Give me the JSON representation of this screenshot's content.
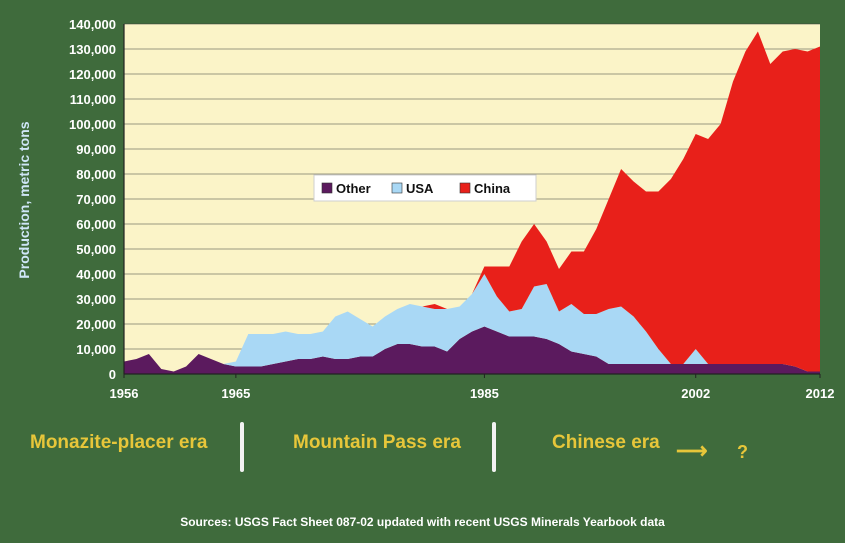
{
  "chart_data": {
    "type": "area",
    "stacked": true,
    "ylabel": "Production, metric tons",
    "ylim": [
      0,
      140000
    ],
    "yticks": [
      "0",
      "10,000",
      "20,000",
      "30,000",
      "40,000",
      "50,000",
      "60,000",
      "70,000",
      "80,000",
      "90,000",
      "100,000",
      "110,000",
      "120,000",
      "130,000",
      "140,000"
    ],
    "xlim": [
      1956,
      2012
    ],
    "xticks": [
      "1956",
      "1965",
      "1985",
      "2002",
      "2012"
    ],
    "grid": true,
    "legend_position": "center",
    "x": [
      1956,
      1957,
      1958,
      1959,
      1960,
      1961,
      1962,
      1963,
      1964,
      1965,
      1966,
      1967,
      1968,
      1969,
      1970,
      1971,
      1972,
      1973,
      1974,
      1975,
      1976,
      1977,
      1978,
      1979,
      1980,
      1981,
      1982,
      1983,
      1984,
      1985,
      1986,
      1987,
      1988,
      1989,
      1990,
      1991,
      1992,
      1993,
      1994,
      1995,
      1996,
      1997,
      1998,
      1999,
      2000,
      2001,
      2002,
      2003,
      2004,
      2005,
      2006,
      2007,
      2008,
      2009,
      2010,
      2011,
      2012
    ],
    "series": [
      {
        "name": "Other",
        "color": "#5b1a5e",
        "values": [
          5000,
          6000,
          8000,
          2000,
          1000,
          3000,
          8000,
          6000,
          4000,
          3000,
          3000,
          3000,
          4000,
          5000,
          6000,
          6000,
          7000,
          6000,
          6000,
          7000,
          7000,
          10000,
          12000,
          12000,
          11000,
          11000,
          9000,
          14000,
          17000,
          19000,
          17000,
          15000,
          15000,
          15000,
          14000,
          12000,
          9000,
          8000,
          7000,
          4000,
          4000,
          4000,
          4000,
          4000,
          4000,
          4000,
          4000,
          4000,
          4000,
          4000,
          4000,
          4000,
          4000,
          4000,
          3000,
          1000,
          1000
        ]
      },
      {
        "name": "USA",
        "color": "#a9d8f5",
        "values": [
          0,
          0,
          0,
          0,
          0,
          0,
          0,
          0,
          0,
          2000,
          13000,
          13000,
          12000,
          12000,
          10000,
          10000,
          10000,
          17000,
          19000,
          15000,
          12000,
          13000,
          14000,
          16000,
          16000,
          15000,
          17000,
          13000,
          15000,
          21000,
          14000,
          10000,
          11000,
          20000,
          22000,
          13000,
          19000,
          16000,
          17000,
          22000,
          23000,
          19000,
          13000,
          6000,
          0,
          0,
          6000,
          0,
          0,
          0,
          0,
          0,
          0,
          0,
          0,
          0,
          0
        ]
      },
      {
        "name": "China",
        "color": "#e8201a",
        "values": [
          0,
          0,
          0,
          0,
          0,
          0,
          0,
          0,
          0,
          0,
          0,
          0,
          0,
          0,
          0,
          0,
          0,
          0,
          0,
          0,
          0,
          0,
          0,
          0,
          0,
          2000,
          0,
          0,
          0,
          3000,
          12000,
          18000,
          27000,
          25000,
          17000,
          17000,
          21000,
          25000,
          34000,
          44000,
          55000,
          54000,
          56000,
          63000,
          74000,
          82000,
          86000,
          90000,
          96000,
          113000,
          125000,
          133000,
          120000,
          125000,
          127000,
          128000,
          130000
        ]
      }
    ]
  },
  "eras": {
    "monazite": "Monazite-placer era",
    "mountain_pass": "Mountain Pass era",
    "chinese": "Chinese era",
    "arrow": "⟶",
    "question": "?"
  },
  "source": "Sources: USGS Fact Sheet 087-02 updated with recent USGS Minerals Yearbook data"
}
